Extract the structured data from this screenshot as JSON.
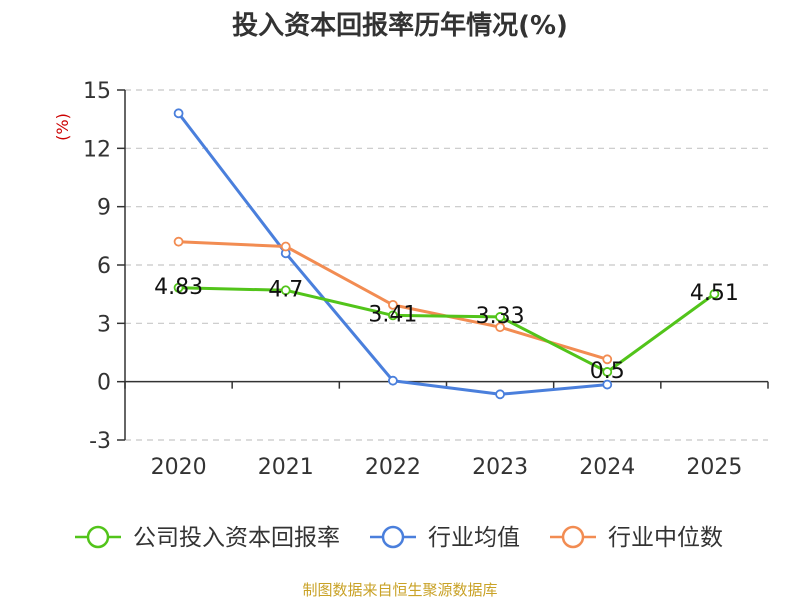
{
  "chart_data": {
    "type": "line",
    "title": "投入资本回报率历年情况(%)",
    "ylabel": "(%)",
    "categories": [
      "2020",
      "2021",
      "2022",
      "2023",
      "2024",
      "2025"
    ],
    "ylim": [
      -3,
      15
    ],
    "yticks": [
      -3,
      0,
      3,
      6,
      9,
      12,
      15
    ],
    "grid": true,
    "legend_position": "bottom",
    "series": [
      {
        "name": "公司投入资本回报率",
        "color": "#52c41a",
        "values": [
          4.83,
          4.7,
          3.41,
          3.33,
          0.5,
          4.51
        ],
        "labels": [
          "4.83",
          "4.7",
          "3.41",
          "3.33",
          "0.5",
          "4.51"
        ]
      },
      {
        "name": "行业均值",
        "color": "#4a7fdc",
        "values": [
          13.8,
          6.6,
          0.05,
          -0.65,
          -0.15,
          null
        ]
      },
      {
        "name": "行业中位数",
        "color": "#f28c52",
        "values": [
          7.2,
          6.95,
          3.95,
          2.8,
          1.15,
          null
        ]
      }
    ],
    "source": "制图数据来自恒生聚源数据库"
  }
}
